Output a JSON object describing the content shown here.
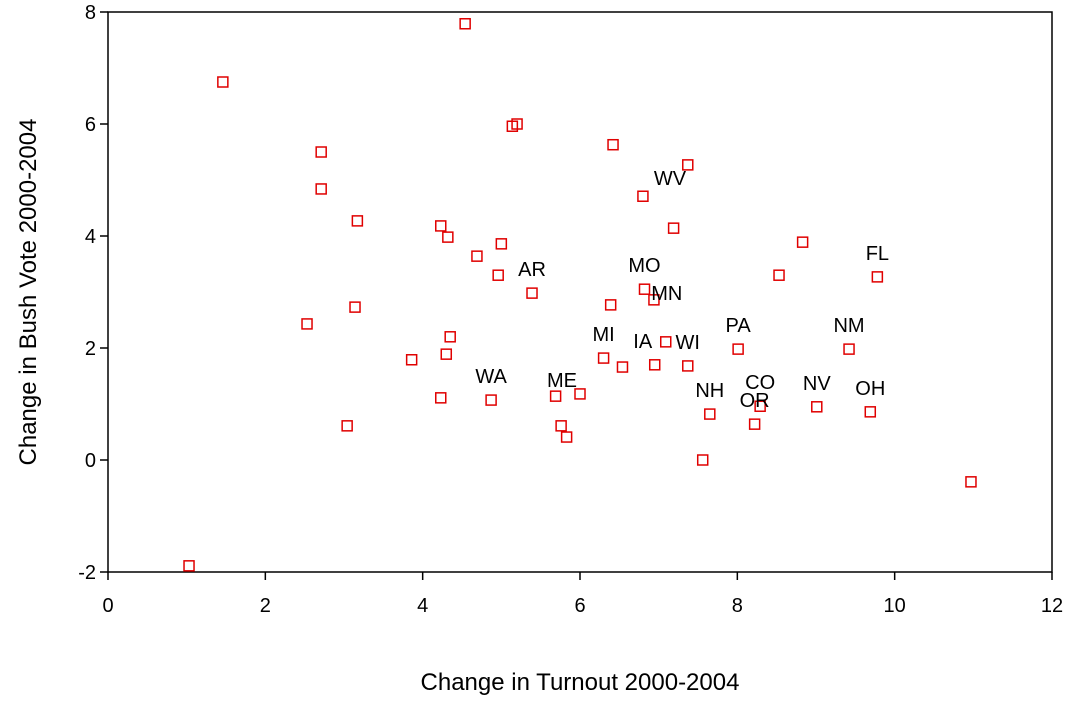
{
  "chart_data": {
    "type": "scatter",
    "x_label": "Change in Turnout 2000-2004",
    "y_label": "Change in Bush Vote 2000-2004",
    "xlim": [
      0,
      12
    ],
    "ylim": [
      -2,
      8
    ],
    "xticks": [
      0,
      2,
      4,
      6,
      8,
      10,
      12
    ],
    "yticks": [
      -2,
      0,
      2,
      4,
      6,
      8
    ],
    "color": "#e00000",
    "x": [
      4.54,
      1.46,
      2.71,
      2.71,
      3.17,
      2.53,
      3.14,
      3.04,
      1.03,
      4.23,
      4.32,
      4.69,
      5.0,
      4.96,
      5.39,
      5.14,
      5.2,
      4.35,
      4.3,
      3.86,
      4.23,
      4.87,
      5.69,
      6.0,
      5.76,
      5.83,
      6.42,
      7.37,
      6.8,
      7.19,
      6.39,
      6.82,
      6.94,
      6.3,
      6.54,
      7.09,
      6.95,
      7.37,
      7.56,
      7.65,
      8.01,
      8.29,
      8.22,
      8.53,
      8.83,
      9.01,
      9.42,
      9.78,
      9.69,
      10.97
    ],
    "values": [
      7.79,
      6.75,
      5.5,
      4.84,
      4.27,
      2.43,
      2.73,
      0.61,
      -1.89,
      4.18,
      3.98,
      3.64,
      3.86,
      3.3,
      2.98,
      5.96,
      6.0,
      2.2,
      1.89,
      1.79,
      1.11,
      1.07,
      1.14,
      1.18,
      0.61,
      0.41,
      5.63,
      5.27,
      4.71,
      4.14,
      2.77,
      3.05,
      2.86,
      1.82,
      1.66,
      2.11,
      1.7,
      1.68,
      0.0,
      0.82,
      1.98,
      0.96,
      0.64,
      3.3,
      3.89,
      0.95,
      1.98,
      3.27,
      0.86,
      -0.39
    ],
    "labels": [
      null,
      null,
      null,
      null,
      null,
      null,
      null,
      null,
      null,
      null,
      null,
      null,
      null,
      null,
      "AR",
      null,
      null,
      null,
      null,
      null,
      null,
      "WA",
      null,
      "ME",
      null,
      null,
      null,
      null,
      "WV",
      null,
      null,
      "MO",
      null,
      "MI",
      null,
      "MN",
      "IA",
      "WI",
      null,
      "NH",
      "PA",
      "CO",
      "OR",
      null,
      null,
      "NV",
      "NM",
      "FL",
      "OH",
      null
    ]
  }
}
